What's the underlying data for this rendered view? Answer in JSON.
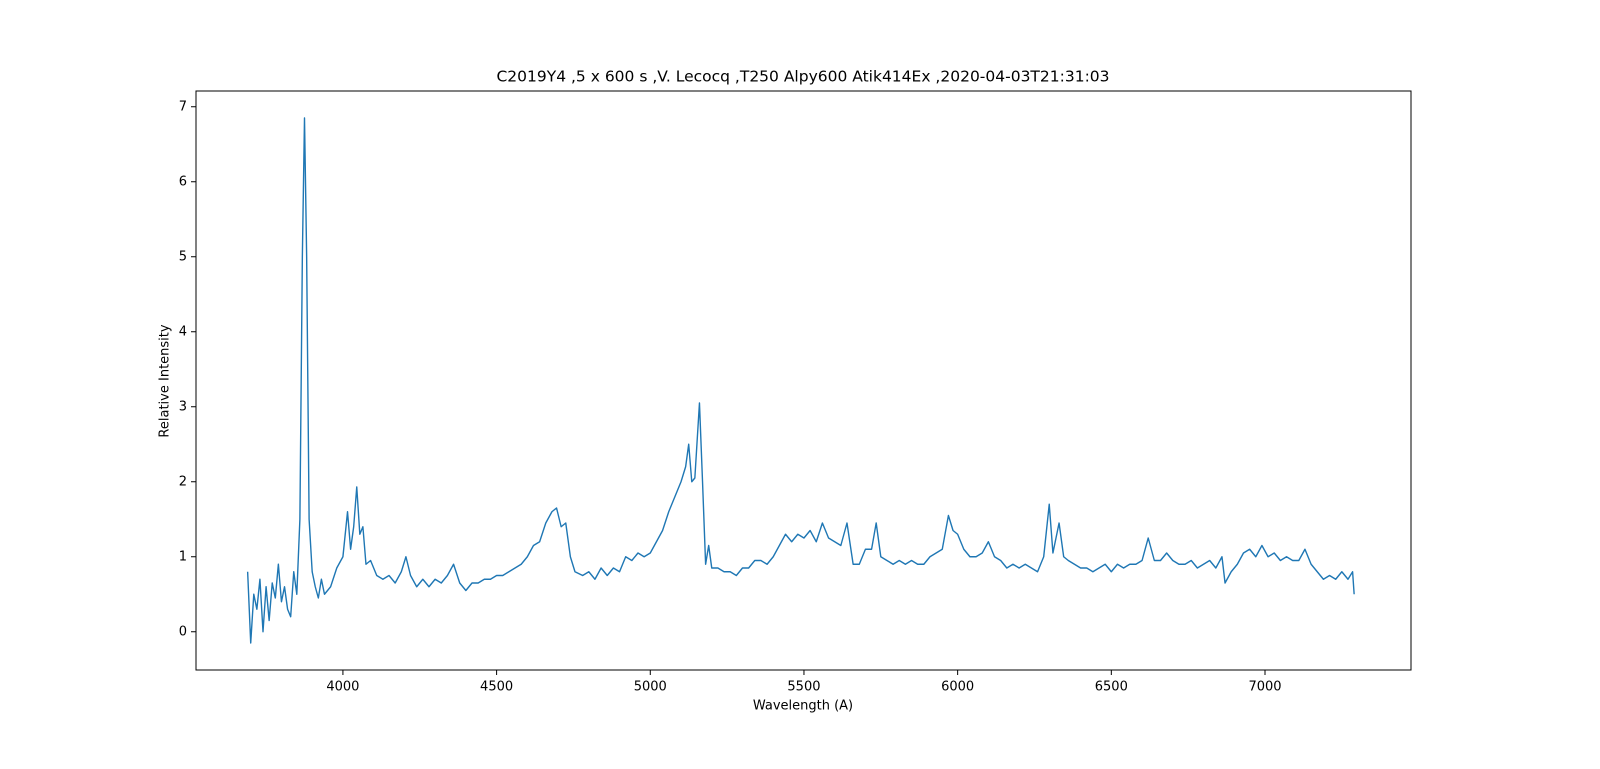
{
  "chart_data": {
    "type": "line",
    "title": "C2019Y4 ,5 x 600 s ,V. Lecocq ,T250 Alpy600 Atik414Ex ,2020-04-03T21:31:03",
    "xlabel": "Wavelength (A)",
    "ylabel": "Relative Intensity",
    "color": "#1f77b4",
    "xlim": [
      3522,
      7475
    ],
    "ylim": [
      -0.51,
      7.21
    ],
    "xticks": [
      4000,
      4500,
      5000,
      5500,
      6000,
      6500,
      7000
    ],
    "yticks": [
      0,
      1,
      2,
      3,
      4,
      5,
      6,
      7
    ],
    "x": [
      3690,
      3700,
      3710,
      3720,
      3730,
      3740,
      3750,
      3760,
      3770,
      3780,
      3790,
      3800,
      3810,
      3820,
      3830,
      3840,
      3850,
      3860,
      3868,
      3875,
      3882,
      3890,
      3900,
      3910,
      3920,
      3930,
      3940,
      3960,
      3980,
      4000,
      4015,
      4025,
      4035,
      4045,
      4055,
      4065,
      4075,
      4090,
      4110,
      4130,
      4150,
      4170,
      4190,
      4205,
      4220,
      4240,
      4260,
      4280,
      4300,
      4320,
      4340,
      4360,
      4380,
      4400,
      4420,
      4440,
      4460,
      4480,
      4500,
      4520,
      4540,
      4560,
      4580,
      4600,
      4620,
      4640,
      4660,
      4680,
      4695,
      4710,
      4725,
      4740,
      4755,
      4780,
      4800,
      4820,
      4840,
      4860,
      4880,
      4900,
      4920,
      4940,
      4960,
      4980,
      5000,
      5020,
      5040,
      5060,
      5080,
      5100,
      5115,
      5125,
      5135,
      5145,
      5160,
      5170,
      5180,
      5190,
      5200,
      5220,
      5240,
      5260,
      5280,
      5300,
      5320,
      5340,
      5360,
      5380,
      5400,
      5420,
      5440,
      5460,
      5480,
      5500,
      5520,
      5540,
      5560,
      5580,
      5600,
      5620,
      5640,
      5660,
      5680,
      5700,
      5720,
      5735,
      5750,
      5770,
      5790,
      5810,
      5830,
      5850,
      5870,
      5890,
      5910,
      5930,
      5950,
      5970,
      5985,
      6000,
      6020,
      6040,
      6060,
      6080,
      6100,
      6120,
      6140,
      6160,
      6180,
      6200,
      6220,
      6240,
      6260,
      6280,
      6298,
      6310,
      6330,
      6345,
      6360,
      6380,
      6400,
      6420,
      6440,
      6460,
      6480,
      6500,
      6520,
      6540,
      6560,
      6580,
      6600,
      6620,
      6640,
      6660,
      6680,
      6700,
      6720,
      6740,
      6760,
      6780,
      6800,
      6820,
      6840,
      6860,
      6870,
      6890,
      6910,
      6930,
      6950,
      6970,
      6990,
      7010,
      7030,
      7050,
      7070,
      7090,
      7110,
      7130,
      7150,
      7170,
      7190,
      7210,
      7230,
      7250,
      7270,
      7285,
      7290
    ],
    "values": [
      0.8,
      -0.15,
      0.5,
      0.3,
      0.7,
      0.0,
      0.6,
      0.15,
      0.65,
      0.45,
      0.9,
      0.4,
      0.6,
      0.3,
      0.2,
      0.8,
      0.5,
      1.5,
      5.0,
      6.85,
      5.0,
      1.5,
      0.8,
      0.6,
      0.45,
      0.7,
      0.5,
      0.6,
      0.85,
      1.0,
      1.6,
      1.1,
      1.4,
      1.93,
      1.3,
      1.4,
      0.9,
      0.95,
      0.75,
      0.7,
      0.75,
      0.65,
      0.8,
      1.0,
      0.75,
      0.6,
      0.7,
      0.6,
      0.7,
      0.65,
      0.75,
      0.9,
      0.65,
      0.55,
      0.65,
      0.65,
      0.7,
      0.7,
      0.75,
      0.75,
      0.8,
      0.85,
      0.9,
      1.0,
      1.15,
      1.2,
      1.45,
      1.6,
      1.65,
      1.4,
      1.45,
      1.0,
      0.8,
      0.75,
      0.8,
      0.7,
      0.85,
      0.75,
      0.85,
      0.8,
      1.0,
      0.95,
      1.05,
      1.0,
      1.05,
      1.2,
      1.35,
      1.6,
      1.8,
      2.0,
      2.2,
      2.5,
      2.0,
      2.05,
      3.05,
      2.0,
      0.9,
      1.15,
      0.85,
      0.85,
      0.8,
      0.8,
      0.75,
      0.85,
      0.85,
      0.95,
      0.95,
      0.9,
      1.0,
      1.15,
      1.3,
      1.2,
      1.3,
      1.25,
      1.35,
      1.2,
      1.45,
      1.25,
      1.2,
      1.15,
      1.45,
      0.9,
      0.9,
      1.1,
      1.1,
      1.45,
      1.0,
      0.95,
      0.9,
      0.95,
      0.9,
      0.95,
      0.9,
      0.9,
      1.0,
      1.05,
      1.1,
      1.55,
      1.35,
      1.3,
      1.1,
      1.0,
      1.0,
      1.05,
      1.2,
      1.0,
      0.95,
      0.85,
      0.9,
      0.85,
      0.9,
      0.85,
      0.8,
      1.0,
      1.7,
      1.05,
      1.45,
      1.0,
      0.95,
      0.9,
      0.85,
      0.85,
      0.8,
      0.85,
      0.9,
      0.8,
      0.9,
      0.85,
      0.9,
      0.9,
      0.95,
      1.25,
      0.95,
      0.95,
      1.05,
      0.95,
      0.9,
      0.9,
      0.95,
      0.85,
      0.9,
      0.95,
      0.85,
      1.0,
      0.65,
      0.8,
      0.9,
      1.05,
      1.1,
      1.0,
      1.15,
      1.0,
      1.05,
      0.95,
      1.0,
      0.95,
      0.95,
      1.1,
      0.9,
      0.8,
      0.7,
      0.75,
      0.7,
      0.8,
      0.7,
      0.8,
      0.5
    ]
  }
}
